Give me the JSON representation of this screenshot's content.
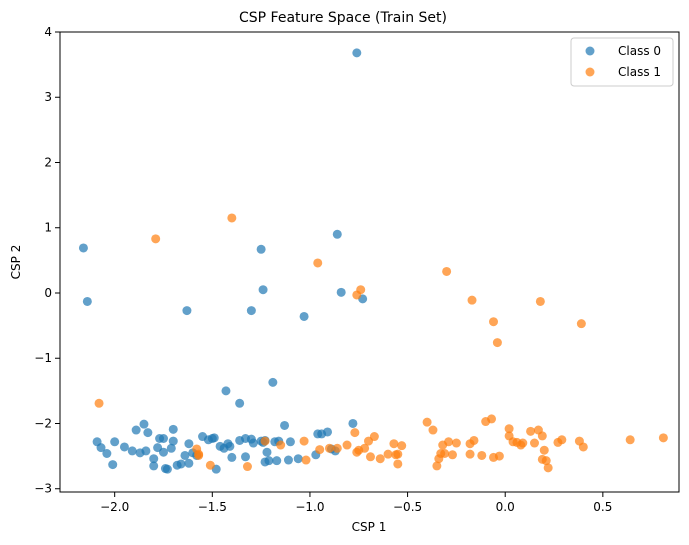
{
  "chart_data": {
    "type": "scatter",
    "title": "CSP Feature Space (Train Set)",
    "xlabel": "CSP 1",
    "ylabel": "CSP 2",
    "xlim": [
      -2.28,
      0.89
    ],
    "ylim": [
      -3.05,
      4.0
    ],
    "xticks": [
      -2.0,
      -1.5,
      -1.0,
      -0.5,
      0.0,
      0.5
    ],
    "xtick_labels": [
      "−2.0",
      "−1.5",
      "−1.0",
      "−0.5",
      "0.0",
      "0.5"
    ],
    "yticks": [
      -3,
      -2,
      -1,
      0,
      1,
      2,
      3,
      4
    ],
    "ytick_labels": [
      "−3",
      "−2",
      "−1",
      "0",
      "1",
      "2",
      "3",
      "4"
    ],
    "grid": false,
    "legend_position": "top-right",
    "series": [
      {
        "name": "Class 0",
        "color": "#1f77b4",
        "points": [
          [
            -0.76,
            3.68
          ],
          [
            -2.16,
            0.69
          ],
          [
            -2.14,
            -0.13
          ],
          [
            -1.25,
            0.67
          ],
          [
            -0.86,
            0.9
          ],
          [
            -1.24,
            0.05
          ],
          [
            -0.84,
            0.01
          ],
          [
            -0.73,
            -0.09
          ],
          [
            -1.63,
            -0.27
          ],
          [
            -1.3,
            -0.27
          ],
          [
            -1.03,
            -0.36
          ],
          [
            -1.19,
            -1.37
          ],
          [
            -1.43,
            -1.5
          ],
          [
            -1.36,
            -1.69
          ],
          [
            -0.78,
            -2.0
          ],
          [
            -2.09,
            -2.28
          ],
          [
            -2.07,
            -2.37
          ],
          [
            -2.04,
            -2.46
          ],
          [
            -2.0,
            -2.28
          ],
          [
            -2.01,
            -2.63
          ],
          [
            -1.95,
            -2.36
          ],
          [
            -1.91,
            -2.42
          ],
          [
            -1.89,
            -2.1
          ],
          [
            -1.87,
            -2.45
          ],
          [
            -1.85,
            -2.01
          ],
          [
            -1.84,
            -2.42
          ],
          [
            -1.83,
            -2.14
          ],
          [
            -1.8,
            -2.54
          ],
          [
            -1.8,
            -2.65
          ],
          [
            -1.78,
            -2.37
          ],
          [
            -1.77,
            -2.23
          ],
          [
            -1.75,
            -2.23
          ],
          [
            -1.75,
            -2.44
          ],
          [
            -1.74,
            -2.69
          ],
          [
            -1.73,
            -2.7
          ],
          [
            -1.71,
            -2.38
          ],
          [
            -1.7,
            -2.27
          ],
          [
            -1.7,
            -2.09
          ],
          [
            -1.68,
            -2.64
          ],
          [
            -1.66,
            -2.62
          ],
          [
            -1.64,
            -2.49
          ],
          [
            -1.62,
            -2.31
          ],
          [
            -1.62,
            -2.61
          ],
          [
            -1.6,
            -2.45
          ],
          [
            -1.58,
            -2.49
          ],
          [
            -1.55,
            -2.2
          ],
          [
            -1.52,
            -2.25
          ],
          [
            -1.5,
            -2.23
          ],
          [
            -1.49,
            -2.22
          ],
          [
            -1.48,
            -2.7
          ],
          [
            -1.46,
            -2.35
          ],
          [
            -1.44,
            -2.38
          ],
          [
            -1.42,
            -2.31
          ],
          [
            -1.41,
            -2.35
          ],
          [
            -1.4,
            -2.52
          ],
          [
            -1.36,
            -2.26
          ],
          [
            -1.33,
            -2.23
          ],
          [
            -1.33,
            -2.51
          ],
          [
            -1.3,
            -2.24
          ],
          [
            -1.29,
            -2.3
          ],
          [
            -1.25,
            -2.27
          ],
          [
            -1.24,
            -2.29
          ],
          [
            -1.23,
            -2.26
          ],
          [
            -1.23,
            -2.59
          ],
          [
            -1.22,
            -2.44
          ],
          [
            -1.21,
            -2.57
          ],
          [
            -1.18,
            -2.28
          ],
          [
            -1.17,
            -2.57
          ],
          [
            -1.16,
            -2.27
          ],
          [
            -1.13,
            -2.03
          ],
          [
            -1.11,
            -2.56
          ],
          [
            -1.1,
            -2.28
          ],
          [
            -1.06,
            -2.54
          ],
          [
            -0.97,
            -2.48
          ],
          [
            -0.96,
            -2.16
          ],
          [
            -0.94,
            -2.16
          ],
          [
            -0.91,
            -2.13
          ],
          [
            -0.89,
            -2.39
          ],
          [
            -0.87,
            -2.42
          ]
        ]
      },
      {
        "name": "Class 1",
        "color": "#ff7f0e",
        "points": [
          [
            -1.4,
            1.15
          ],
          [
            -1.79,
            0.83
          ],
          [
            -0.96,
            0.46
          ],
          [
            -0.74,
            0.05
          ],
          [
            -0.76,
            -0.03
          ],
          [
            -0.3,
            0.33
          ],
          [
            -0.17,
            -0.11
          ],
          [
            0.18,
            -0.13
          ],
          [
            -0.06,
            -0.44
          ],
          [
            -0.04,
            -0.76
          ],
          [
            0.39,
            -0.47
          ],
          [
            -2.08,
            -1.69
          ],
          [
            -1.58,
            -2.39
          ],
          [
            -1.57,
            -2.49
          ],
          [
            -1.57,
            -2.47
          ],
          [
            -1.51,
            -2.64
          ],
          [
            -1.32,
            -2.66
          ],
          [
            -1.23,
            -2.27
          ],
          [
            -1.15,
            -2.33
          ],
          [
            -1.03,
            -2.27
          ],
          [
            -1.02,
            -2.56
          ],
          [
            -0.95,
            -2.4
          ],
          [
            -0.9,
            -2.38
          ],
          [
            -0.86,
            -2.38
          ],
          [
            -0.81,
            -2.33
          ],
          [
            -0.77,
            -2.14
          ],
          [
            -0.76,
            -2.44
          ],
          [
            -0.75,
            -2.41
          ],
          [
            -0.72,
            -2.38
          ],
          [
            -0.7,
            -2.27
          ],
          [
            -0.69,
            -2.51
          ],
          [
            -0.67,
            -2.2
          ],
          [
            -0.64,
            -2.54
          ],
          [
            -0.6,
            -2.47
          ],
          [
            -0.57,
            -2.31
          ],
          [
            -0.56,
            -2.48
          ],
          [
            -0.55,
            -2.47
          ],
          [
            -0.55,
            -2.62
          ],
          [
            -0.53,
            -2.34
          ],
          [
            -0.4,
            -1.98
          ],
          [
            -0.37,
            -2.1
          ],
          [
            -0.35,
            -2.65
          ],
          [
            -0.34,
            -2.54
          ],
          [
            -0.33,
            -2.46
          ],
          [
            -0.32,
            -2.33
          ],
          [
            -0.31,
            -2.46
          ],
          [
            -0.29,
            -2.28
          ],
          [
            -0.27,
            -2.48
          ],
          [
            -0.25,
            -2.3
          ],
          [
            -0.18,
            -2.47
          ],
          [
            -0.18,
            -2.31
          ],
          [
            -0.16,
            -2.26
          ],
          [
            -0.12,
            -2.49
          ],
          [
            -0.1,
            -1.97
          ],
          [
            -0.07,
            -1.93
          ],
          [
            -0.06,
            -2.52
          ],
          [
            -0.03,
            -2.5
          ],
          [
            0.02,
            -2.08
          ],
          [
            0.02,
            -2.19
          ],
          [
            0.04,
            -2.28
          ],
          [
            0.06,
            -2.29
          ],
          [
            0.08,
            -2.33
          ],
          [
            0.09,
            -2.3
          ],
          [
            0.13,
            -2.12
          ],
          [
            0.15,
            -2.3
          ],
          [
            0.17,
            -2.1
          ],
          [
            0.19,
            -2.19
          ],
          [
            0.19,
            -2.55
          ],
          [
            0.2,
            -2.41
          ],
          [
            0.21,
            -2.57
          ],
          [
            0.22,
            -2.68
          ],
          [
            0.27,
            -2.29
          ],
          [
            0.29,
            -2.25
          ],
          [
            0.38,
            -2.27
          ],
          [
            0.4,
            -2.36
          ],
          [
            0.64,
            -2.25
          ],
          [
            0.81,
            -2.22
          ]
        ]
      }
    ]
  }
}
